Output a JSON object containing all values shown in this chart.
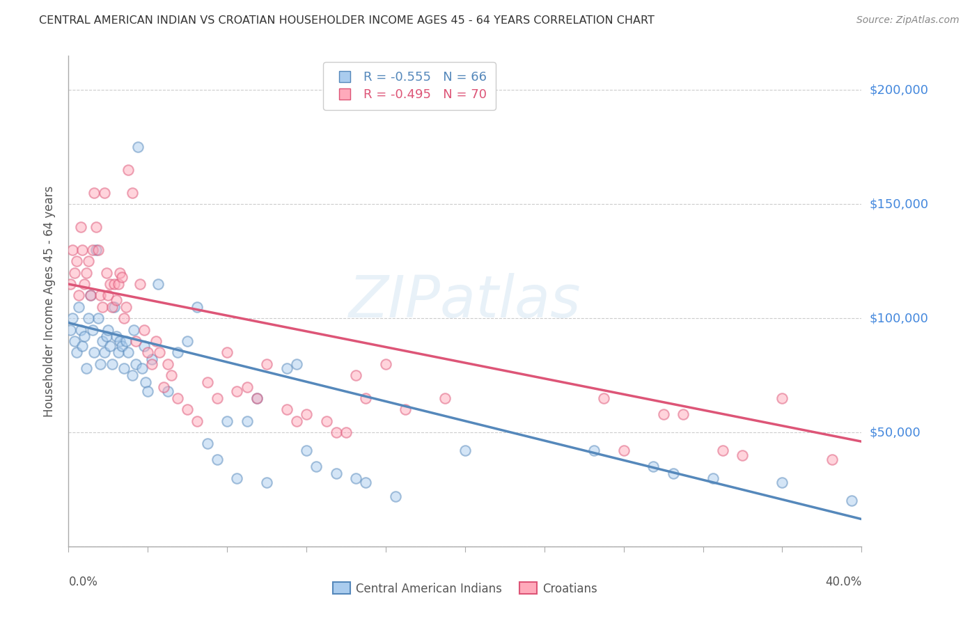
{
  "title": "CENTRAL AMERICAN INDIAN VS CROATIAN HOUSEHOLDER INCOME AGES 45 - 64 YEARS CORRELATION CHART",
  "source": "Source: ZipAtlas.com",
  "ylabel": "Householder Income Ages 45 - 64 years",
  "ytick_vals": [
    0,
    50000,
    100000,
    150000,
    200000
  ],
  "ytick_labels": [
    "",
    "$50,000",
    "$100,000",
    "$150,000",
    "$200,000"
  ],
  "ymax": 215000,
  "xmin": 0.0,
  "xmax": 0.4,
  "legend_line1": "R = -0.555   N = 66",
  "legend_line2": "R = -0.495   N = 70",
  "legend_labels": [
    "Central American Indians",
    "Croatians"
  ],
  "watermark": "ZIPatlas",
  "title_color": "#333333",
  "source_color": "#888888",
  "grid_color": "#cccccc",
  "right_label_color": "#4488dd",
  "blue_scatter": [
    [
      0.001,
      95000
    ],
    [
      0.002,
      100000
    ],
    [
      0.003,
      90000
    ],
    [
      0.004,
      85000
    ],
    [
      0.005,
      105000
    ],
    [
      0.006,
      95000
    ],
    [
      0.007,
      88000
    ],
    [
      0.008,
      92000
    ],
    [
      0.009,
      78000
    ],
    [
      0.01,
      100000
    ],
    [
      0.011,
      110000
    ],
    [
      0.012,
      95000
    ],
    [
      0.013,
      85000
    ],
    [
      0.014,
      130000
    ],
    [
      0.015,
      100000
    ],
    [
      0.016,
      80000
    ],
    [
      0.017,
      90000
    ],
    [
      0.018,
      85000
    ],
    [
      0.019,
      92000
    ],
    [
      0.02,
      95000
    ],
    [
      0.021,
      88000
    ],
    [
      0.022,
      80000
    ],
    [
      0.023,
      105000
    ],
    [
      0.024,
      92000
    ],
    [
      0.025,
      85000
    ],
    [
      0.026,
      90000
    ],
    [
      0.027,
      88000
    ],
    [
      0.028,
      78000
    ],
    [
      0.029,
      90000
    ],
    [
      0.03,
      85000
    ],
    [
      0.032,
      75000
    ],
    [
      0.033,
      95000
    ],
    [
      0.034,
      80000
    ],
    [
      0.035,
      175000
    ],
    [
      0.037,
      78000
    ],
    [
      0.038,
      88000
    ],
    [
      0.039,
      72000
    ],
    [
      0.04,
      68000
    ],
    [
      0.042,
      82000
    ],
    [
      0.045,
      115000
    ],
    [
      0.05,
      68000
    ],
    [
      0.055,
      85000
    ],
    [
      0.06,
      90000
    ],
    [
      0.065,
      105000
    ],
    [
      0.07,
      45000
    ],
    [
      0.075,
      38000
    ],
    [
      0.08,
      55000
    ],
    [
      0.085,
      30000
    ],
    [
      0.09,
      55000
    ],
    [
      0.095,
      65000
    ],
    [
      0.1,
      28000
    ],
    [
      0.11,
      78000
    ],
    [
      0.115,
      80000
    ],
    [
      0.12,
      42000
    ],
    [
      0.125,
      35000
    ],
    [
      0.135,
      32000
    ],
    [
      0.145,
      30000
    ],
    [
      0.15,
      28000
    ],
    [
      0.165,
      22000
    ],
    [
      0.2,
      42000
    ],
    [
      0.265,
      42000
    ],
    [
      0.295,
      35000
    ],
    [
      0.305,
      32000
    ],
    [
      0.325,
      30000
    ],
    [
      0.36,
      28000
    ],
    [
      0.395,
      20000
    ]
  ],
  "pink_scatter": [
    [
      0.001,
      115000
    ],
    [
      0.002,
      130000
    ],
    [
      0.003,
      120000
    ],
    [
      0.004,
      125000
    ],
    [
      0.005,
      110000
    ],
    [
      0.006,
      140000
    ],
    [
      0.007,
      130000
    ],
    [
      0.008,
      115000
    ],
    [
      0.009,
      120000
    ],
    [
      0.01,
      125000
    ],
    [
      0.011,
      110000
    ],
    [
      0.012,
      130000
    ],
    [
      0.013,
      155000
    ],
    [
      0.014,
      140000
    ],
    [
      0.015,
      130000
    ],
    [
      0.016,
      110000
    ],
    [
      0.017,
      105000
    ],
    [
      0.018,
      155000
    ],
    [
      0.019,
      120000
    ],
    [
      0.02,
      110000
    ],
    [
      0.021,
      115000
    ],
    [
      0.022,
      105000
    ],
    [
      0.023,
      115000
    ],
    [
      0.024,
      108000
    ],
    [
      0.025,
      115000
    ],
    [
      0.026,
      120000
    ],
    [
      0.027,
      118000
    ],
    [
      0.028,
      100000
    ],
    [
      0.029,
      105000
    ],
    [
      0.03,
      165000
    ],
    [
      0.032,
      155000
    ],
    [
      0.034,
      90000
    ],
    [
      0.036,
      115000
    ],
    [
      0.038,
      95000
    ],
    [
      0.04,
      85000
    ],
    [
      0.042,
      80000
    ],
    [
      0.044,
      90000
    ],
    [
      0.046,
      85000
    ],
    [
      0.048,
      70000
    ],
    [
      0.05,
      80000
    ],
    [
      0.052,
      75000
    ],
    [
      0.055,
      65000
    ],
    [
      0.06,
      60000
    ],
    [
      0.065,
      55000
    ],
    [
      0.07,
      72000
    ],
    [
      0.075,
      65000
    ],
    [
      0.08,
      85000
    ],
    [
      0.085,
      68000
    ],
    [
      0.09,
      70000
    ],
    [
      0.095,
      65000
    ],
    [
      0.1,
      80000
    ],
    [
      0.11,
      60000
    ],
    [
      0.115,
      55000
    ],
    [
      0.12,
      58000
    ],
    [
      0.13,
      55000
    ],
    [
      0.135,
      50000
    ],
    [
      0.14,
      50000
    ],
    [
      0.145,
      75000
    ],
    [
      0.15,
      65000
    ],
    [
      0.16,
      80000
    ],
    [
      0.17,
      60000
    ],
    [
      0.19,
      65000
    ],
    [
      0.27,
      65000
    ],
    [
      0.28,
      42000
    ],
    [
      0.3,
      58000
    ],
    [
      0.31,
      58000
    ],
    [
      0.33,
      42000
    ],
    [
      0.34,
      40000
    ],
    [
      0.36,
      65000
    ],
    [
      0.385,
      38000
    ]
  ],
  "blue_line_x": [
    0.0,
    0.4
  ],
  "blue_line_y": [
    98000,
    12000
  ],
  "pink_line_x": [
    0.0,
    0.4
  ],
  "pink_line_y": [
    115000,
    46000
  ],
  "background_color": "#ffffff",
  "scatter_alpha": 0.5,
  "scatter_size": 110,
  "scatter_linewidth": 1.5,
  "blue_face": "#aaccee",
  "blue_edge": "#5588bb",
  "pink_face": "#ffaabb",
  "pink_edge": "#dd5577"
}
